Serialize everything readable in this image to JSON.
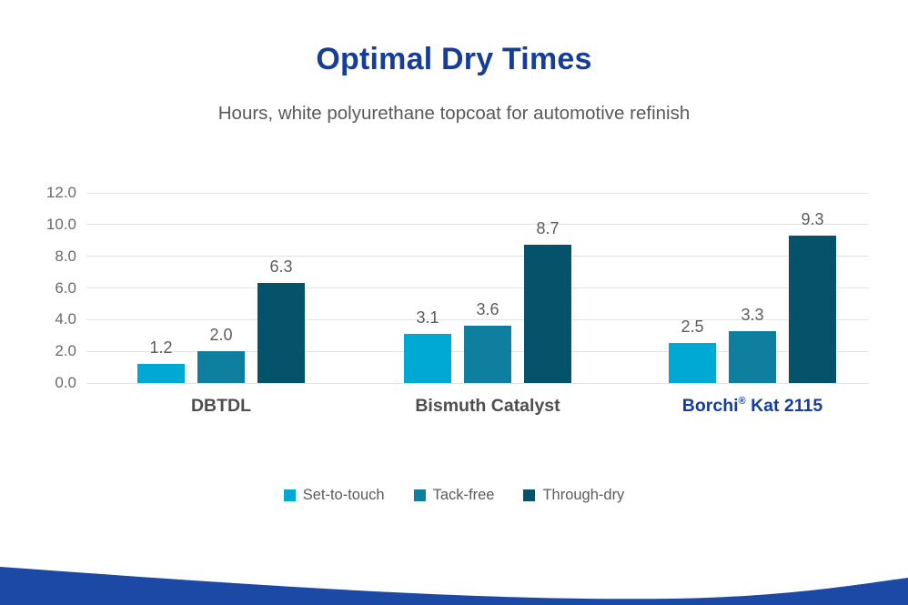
{
  "header": {
    "title": "Optimal Dry Times",
    "subtitle": "Hours, white polyurethane topcoat for automotive refinish"
  },
  "colors": {
    "title_blue": "#163E96",
    "category_gray": "#4E4E4E",
    "grid": "#E3E3E3",
    "wave_blue": "#1C48A6"
  },
  "chart_data": {
    "type": "bar",
    "title": "Optimal Dry Times",
    "subtitle": "Hours, white polyurethane topcoat for automotive refinish",
    "categories": [
      "DBTDL",
      "Bismuth Catalyst",
      "Borchi® Kat 2115"
    ],
    "highlight_category_index": 2,
    "series": [
      {
        "name": "Set-to-touch",
        "color": "#00A8D4",
        "values": [
          1.2,
          3.1,
          2.5
        ]
      },
      {
        "name": "Tack-free",
        "color": "#0F7FA0",
        "values": [
          2.0,
          3.6,
          3.3
        ]
      },
      {
        "name": "Through-dry",
        "color": "#05536B",
        "values": [
          6.3,
          8.7,
          9.3
        ]
      }
    ],
    "value_labels": [
      "1.2",
      "2.0",
      "6.3",
      "3.1",
      "3.6",
      "8.7",
      "2.5",
      "3.3",
      "9.3"
    ],
    "ylim": [
      0,
      12
    ],
    "ytick_step": 2,
    "ytick_labels": [
      "0.0",
      "2.0",
      "4.0",
      "6.0",
      "8.0",
      "10.0",
      "12.0"
    ],
    "grid": true,
    "legend_position": "bottom"
  }
}
